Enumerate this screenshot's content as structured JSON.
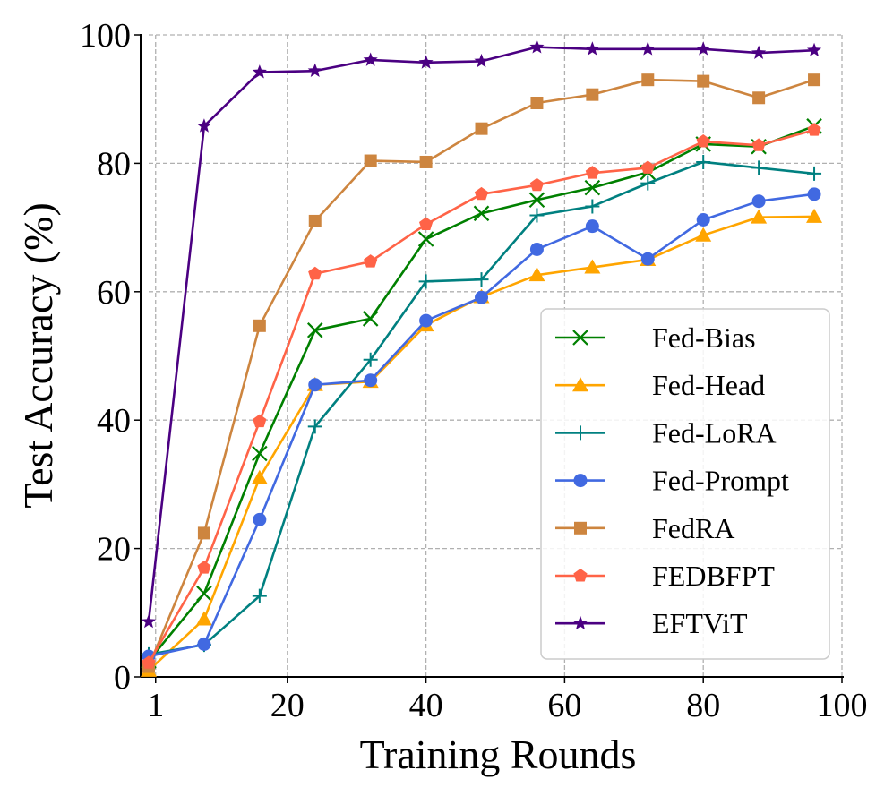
{
  "chart_data": {
    "type": "line",
    "xlabel": "Training Rounds",
    "ylabel": "Test Accuracy (%)",
    "xlim": [
      0,
      100
    ],
    "ylim": [
      0,
      100
    ],
    "xticks": [
      1,
      20,
      40,
      60,
      80,
      100
    ],
    "yticks": [
      0,
      20,
      40,
      60,
      80,
      100
    ],
    "grid": true,
    "legend_position": "lower-right",
    "x": [
      0,
      8,
      16,
      24,
      32,
      40,
      48,
      56,
      64,
      72,
      80,
      88,
      96
    ],
    "series": [
      {
        "name": "Fed-Bias",
        "color": "#008000",
        "marker": "x",
        "values": [
          2.5,
          13.0,
          34.8,
          54.0,
          55.8,
          68.2,
          72.2,
          74.3,
          76.2,
          78.6,
          83.0,
          82.6,
          85.8
        ]
      },
      {
        "name": "Fed-Head",
        "color": "#FFA500",
        "marker": "triangle",
        "values": [
          1.0,
          9.0,
          31.0,
          45.5,
          46.0,
          54.8,
          59.2,
          62.6,
          63.8,
          65.0,
          68.8,
          71.6,
          71.7
        ]
      },
      {
        "name": "Fed-LoRA",
        "color": "#008080",
        "marker": "plus",
        "values": [
          3.5,
          5.0,
          12.6,
          39.0,
          49.4,
          61.6,
          61.9,
          71.9,
          73.3,
          76.9,
          80.2,
          79.3,
          78.4
        ]
      },
      {
        "name": "Fed-Prompt",
        "color": "#4169E1",
        "marker": "circle",
        "values": [
          3.2,
          5.1,
          24.5,
          45.5,
          46.2,
          55.5,
          59.1,
          66.6,
          70.2,
          65.1,
          71.2,
          74.1,
          75.2
        ]
      },
      {
        "name": "FedRA",
        "color": "#CD853F",
        "marker": "square",
        "values": [
          1.6,
          22.4,
          54.7,
          71.0,
          80.4,
          80.2,
          85.4,
          89.4,
          90.7,
          93.0,
          92.8,
          90.2,
          93.0
        ]
      },
      {
        "name": "FEDBFPT",
        "color": "#FF6347",
        "marker": "pentagon",
        "values": [
          2.2,
          17.0,
          39.8,
          62.8,
          64.7,
          70.5,
          75.2,
          76.6,
          78.5,
          79.3,
          83.4,
          82.8,
          85.2
        ]
      },
      {
        "name": "EFTViT",
        "color": "#4B0082",
        "marker": "star",
        "values": [
          8.6,
          85.8,
          94.2,
          94.4,
          96.1,
          95.7,
          95.9,
          98.1,
          97.8,
          97.8,
          97.8,
          97.2,
          97.6
        ]
      }
    ]
  }
}
